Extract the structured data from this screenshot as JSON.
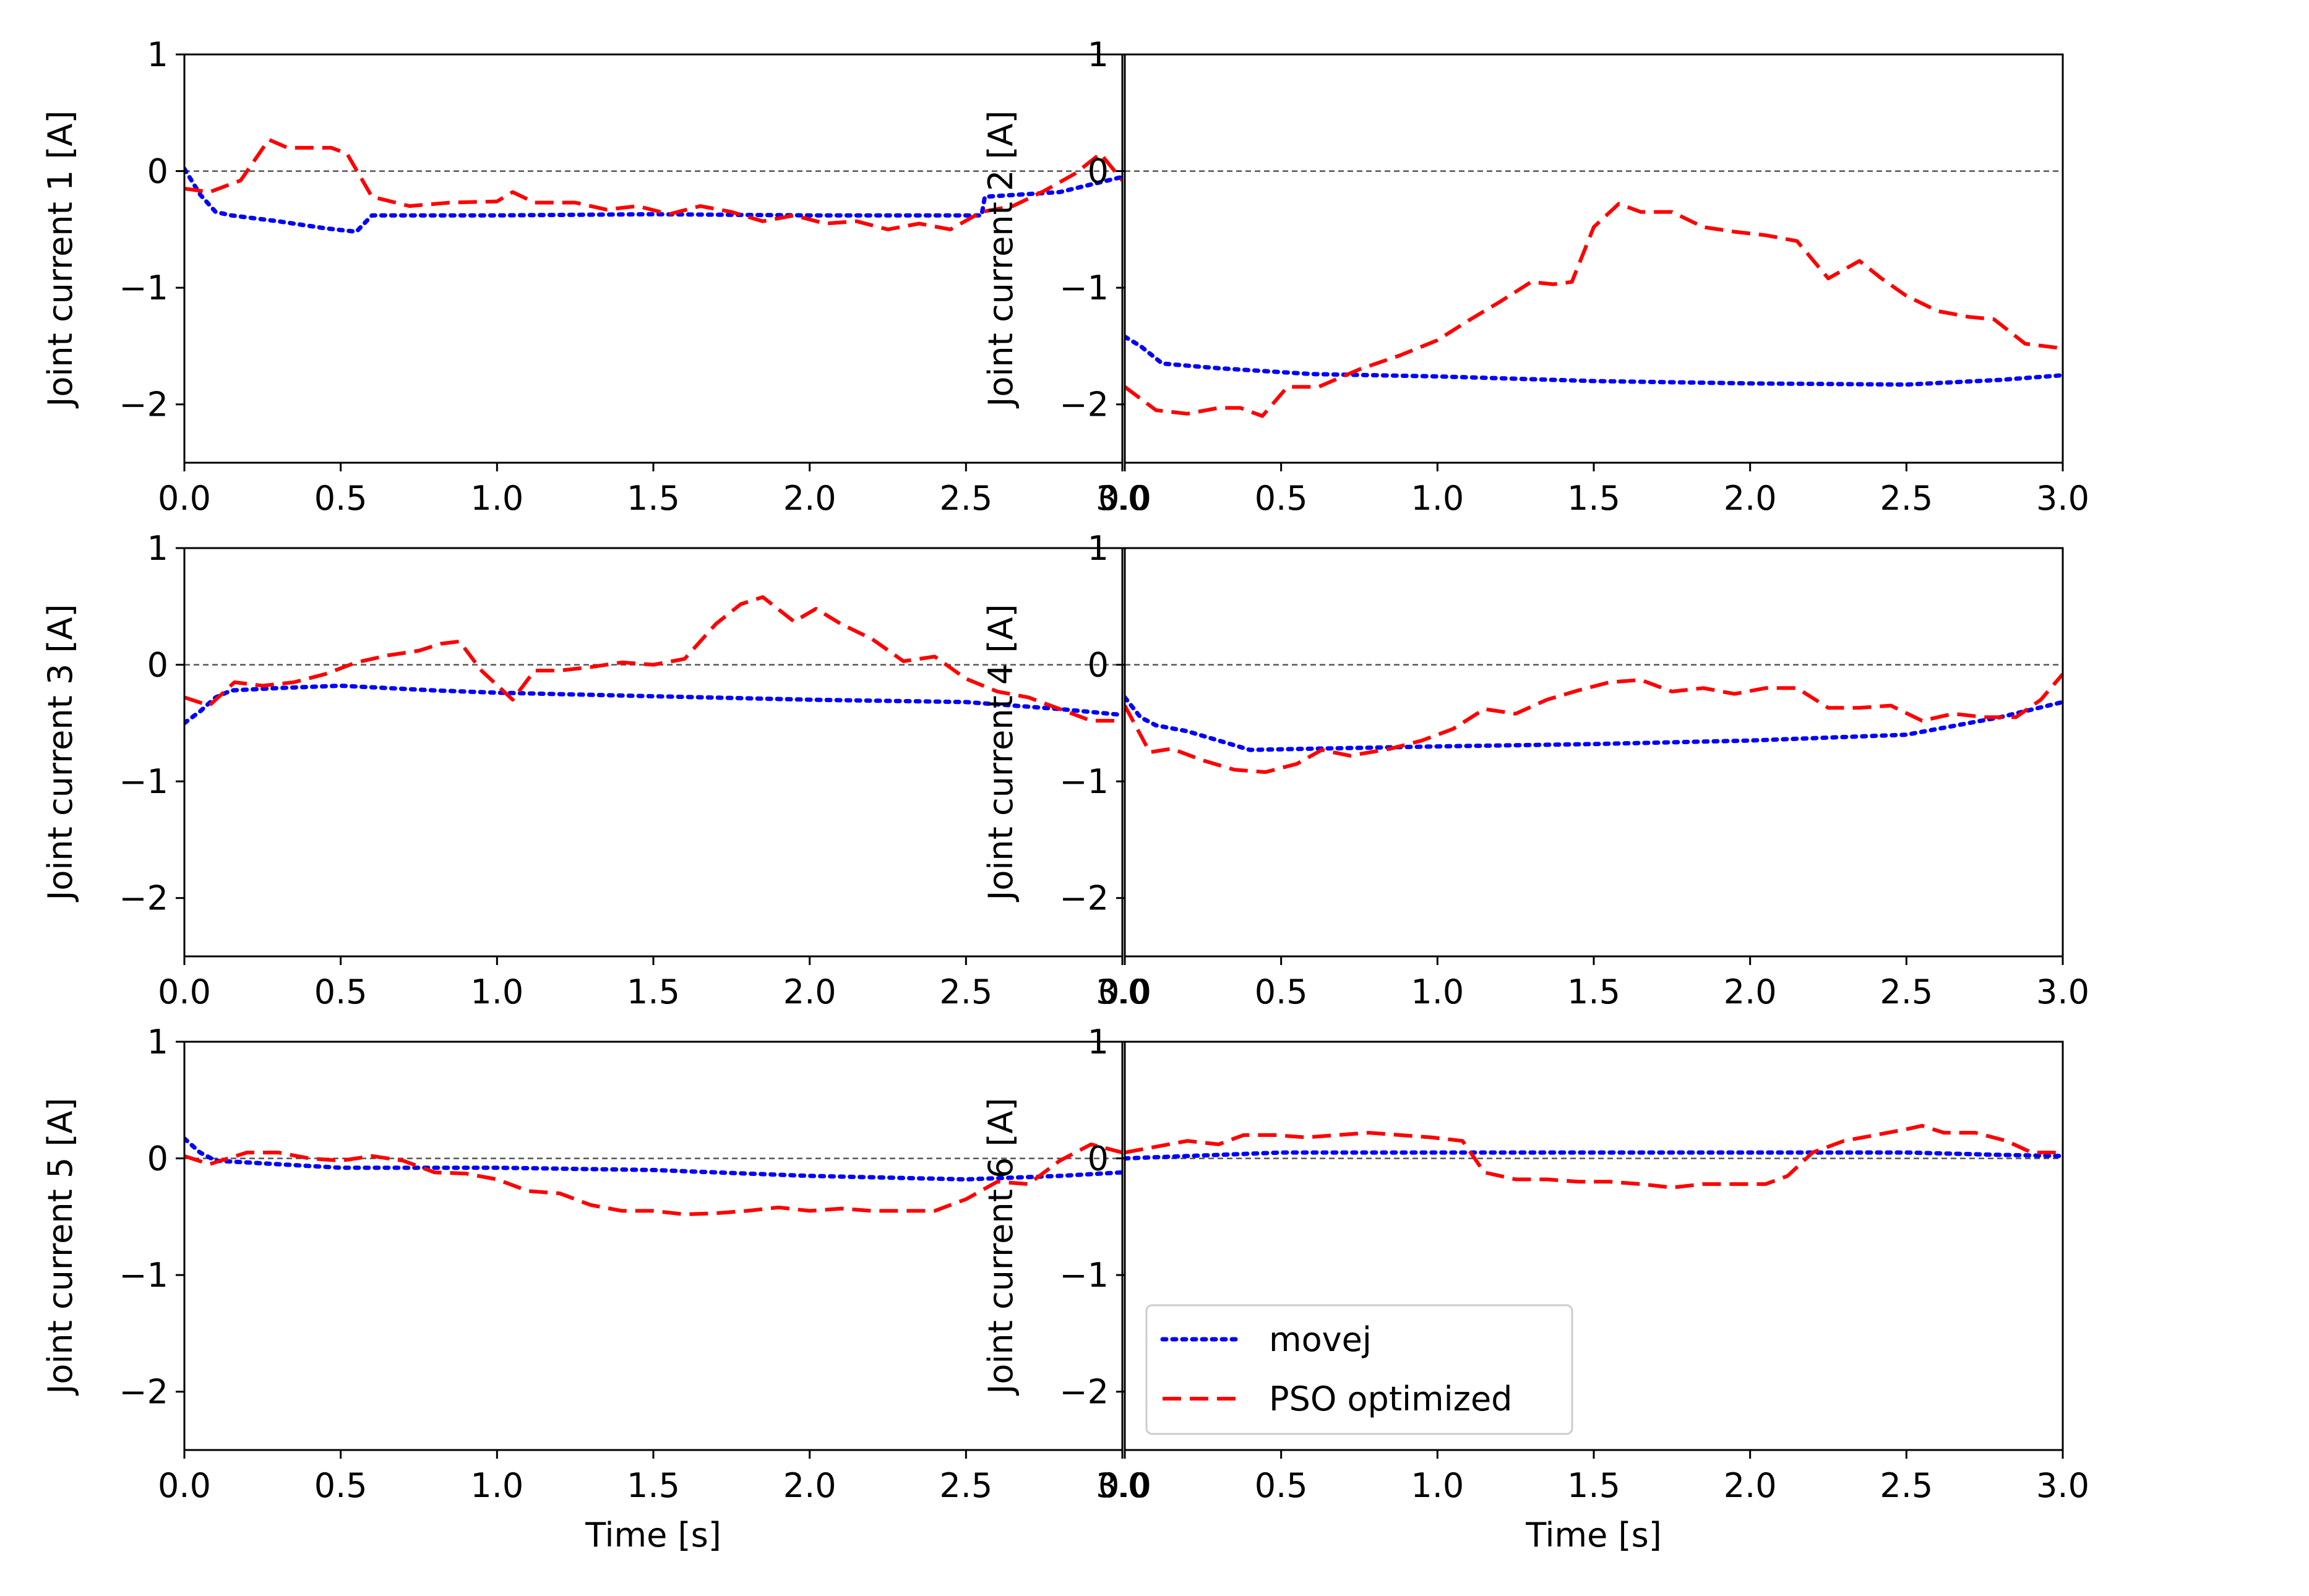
{
  "colors": {
    "movej": "#0000ff",
    "pso": "#ff0000",
    "zero_line": "#555555",
    "axes": "#000000",
    "legend_border": "#cccccc"
  },
  "legend": {
    "placement": "lower-left (bottom-right panel)",
    "entries": [
      {
        "label": "movej",
        "style": "dotted",
        "color": "#0000ff"
      },
      {
        "label": "PSO optimized",
        "style": "dashed",
        "color": "#ff0000"
      }
    ]
  },
  "chart_data": [
    {
      "type": "line",
      "ylabel": "Joint current 1 [A]",
      "xlabel": "",
      "xlim": [
        0,
        3
      ],
      "ylim": [
        -2.5,
        1
      ],
      "xticks": [
        "0.0",
        "0.5",
        "1.0",
        "1.5",
        "2.0",
        "2.5",
        "3.0"
      ],
      "yticks": [
        "1",
        "0",
        "−1",
        "−2"
      ],
      "ytick_values": [
        1,
        0,
        -1,
        -2
      ],
      "zero_line": true,
      "series": [
        {
          "name": "movej",
          "style": "dotted",
          "color": "#0000ff",
          "x": [
            0,
            0.05,
            0.1,
            0.15,
            0.3,
            0.45,
            0.55,
            0.6,
            0.7,
            1.0,
            1.5,
            2.0,
            2.55,
            2.56,
            2.8,
            3.0
          ],
          "y": [
            0.02,
            -0.2,
            -0.35,
            -0.38,
            -0.43,
            -0.49,
            -0.52,
            -0.38,
            -0.38,
            -0.38,
            -0.37,
            -0.38,
            -0.38,
            -0.22,
            -0.18,
            -0.05
          ]
        },
        {
          "name": "PSO optimized",
          "style": "dashed",
          "color": "#ff0000",
          "x": [
            0,
            0.08,
            0.18,
            0.27,
            0.33,
            0.4,
            0.47,
            0.52,
            0.6,
            0.72,
            0.85,
            1.0,
            1.05,
            1.12,
            1.25,
            1.35,
            1.45,
            1.55,
            1.65,
            1.75,
            1.85,
            1.95,
            2.05,
            2.15,
            2.25,
            2.35,
            2.45,
            2.55,
            2.65,
            2.75,
            2.85,
            2.93,
            3.0
          ],
          "y": [
            -0.15,
            -0.18,
            -0.08,
            0.27,
            0.2,
            0.2,
            0.2,
            0.15,
            -0.22,
            -0.3,
            -0.27,
            -0.26,
            -0.18,
            -0.27,
            -0.27,
            -0.33,
            -0.3,
            -0.37,
            -0.3,
            -0.35,
            -0.43,
            -0.38,
            -0.45,
            -0.43,
            -0.5,
            -0.45,
            -0.5,
            -0.35,
            -0.3,
            -0.17,
            -0.02,
            0.15,
            -0.08
          ]
        }
      ]
    },
    {
      "type": "line",
      "ylabel": "Joint current 2 [A]",
      "xlabel": "",
      "xlim": [
        0,
        3
      ],
      "ylim": [
        -2.5,
        1
      ],
      "xticks": [
        "0.0",
        "0.5",
        "1.0",
        "1.5",
        "2.0",
        "2.5",
        "3.0"
      ],
      "yticks": [
        "1",
        "0",
        "−1",
        "−2"
      ],
      "ytick_values": [
        1,
        0,
        -1,
        -2
      ],
      "zero_line": true,
      "series": [
        {
          "name": "movej",
          "style": "dotted",
          "color": "#0000ff",
          "x": [
            0,
            0.05,
            0.12,
            0.3,
            0.6,
            1.0,
            1.5,
            2.0,
            2.5,
            2.8,
            3.0
          ],
          "y": [
            -1.42,
            -1.5,
            -1.65,
            -1.69,
            -1.74,
            -1.76,
            -1.8,
            -1.82,
            -1.83,
            -1.79,
            -1.75
          ]
        },
        {
          "name": "PSO optimized",
          "style": "dashed",
          "color": "#ff0000",
          "x": [
            0,
            0.1,
            0.2,
            0.3,
            0.37,
            0.44,
            0.52,
            0.62,
            0.75,
            0.88,
            1.0,
            1.1,
            1.2,
            1.3,
            1.37,
            1.43,
            1.5,
            1.58,
            1.65,
            1.75,
            1.85,
            1.95,
            2.05,
            2.15,
            2.25,
            2.35,
            2.42,
            2.5,
            2.6,
            2.7,
            2.78,
            2.88,
            3.0
          ],
          "y": [
            -1.85,
            -2.05,
            -2.08,
            -2.03,
            -2.03,
            -2.1,
            -1.85,
            -1.85,
            -1.7,
            -1.58,
            -1.45,
            -1.28,
            -1.12,
            -0.95,
            -0.97,
            -0.95,
            -0.48,
            -0.28,
            -0.35,
            -0.35,
            -0.48,
            -0.52,
            -0.55,
            -0.6,
            -0.92,
            -0.77,
            -0.92,
            -1.07,
            -1.2,
            -1.25,
            -1.27,
            -1.48,
            -1.52
          ]
        }
      ]
    },
    {
      "type": "line",
      "ylabel": "Joint current 3 [A]",
      "xlabel": "",
      "xlim": [
        0,
        3
      ],
      "ylim": [
        -2.5,
        1
      ],
      "xticks": [
        "0.0",
        "0.5",
        "1.0",
        "1.5",
        "2.0",
        "2.5",
        "3.0"
      ],
      "yticks": [
        "1",
        "0",
        "−1",
        "−2"
      ],
      "ytick_values": [
        1,
        0,
        -1,
        -2
      ],
      "zero_line": true,
      "series": [
        {
          "name": "movej",
          "style": "dotted",
          "color": "#0000ff",
          "x": [
            0,
            0.05,
            0.1,
            0.15,
            0.3,
            0.5,
            0.8,
            1.0,
            1.5,
            2.0,
            2.5,
            2.8,
            3.0
          ],
          "y": [
            -0.5,
            -0.4,
            -0.28,
            -0.22,
            -0.2,
            -0.18,
            -0.22,
            -0.24,
            -0.27,
            -0.3,
            -0.32,
            -0.38,
            -0.43
          ]
        },
        {
          "name": "PSO optimized",
          "style": "dashed",
          "color": "#ff0000",
          "x": [
            0,
            0.08,
            0.16,
            0.25,
            0.35,
            0.45,
            0.55,
            0.65,
            0.75,
            0.82,
            0.88,
            0.95,
            1.05,
            1.12,
            1.2,
            1.3,
            1.4,
            1.5,
            1.6,
            1.7,
            1.78,
            1.85,
            1.95,
            2.02,
            2.1,
            2.2,
            2.3,
            2.4,
            2.5,
            2.6,
            2.7,
            2.8,
            2.9,
            3.0
          ],
          "y": [
            -0.28,
            -0.35,
            -0.15,
            -0.18,
            -0.15,
            -0.08,
            0.02,
            0.08,
            0.12,
            0.18,
            0.2,
            -0.05,
            -0.3,
            -0.05,
            -0.05,
            -0.02,
            0.02,
            0.0,
            0.05,
            0.35,
            0.52,
            0.58,
            0.37,
            0.48,
            0.35,
            0.22,
            0.03,
            0.07,
            -0.12,
            -0.23,
            -0.28,
            -0.38,
            -0.48,
            -0.48
          ]
        }
      ]
    },
    {
      "type": "line",
      "ylabel": "Joint current 4 [A]",
      "xlabel": "",
      "xlim": [
        0,
        3
      ],
      "ylim": [
        -2.5,
        1
      ],
      "xticks": [
        "0.0",
        "0.5",
        "1.0",
        "1.5",
        "2.0",
        "2.5",
        "3.0"
      ],
      "yticks": [
        "1",
        "0",
        "−1",
        "−2"
      ],
      "ytick_values": [
        1,
        0,
        -1,
        -2
      ],
      "zero_line": true,
      "series": [
        {
          "name": "movej",
          "style": "dotted",
          "color": "#0000ff",
          "x": [
            0,
            0.05,
            0.1,
            0.2,
            0.3,
            0.4,
            0.6,
            0.8,
            1.0,
            1.5,
            2.0,
            2.5,
            2.8,
            3.0
          ],
          "y": [
            -0.28,
            -0.45,
            -0.52,
            -0.57,
            -0.65,
            -0.73,
            -0.72,
            -0.71,
            -0.7,
            -0.68,
            -0.65,
            -0.6,
            -0.45,
            -0.32
          ]
        },
        {
          "name": "PSO optimized",
          "style": "dashed",
          "color": "#ff0000",
          "x": [
            0,
            0.08,
            0.15,
            0.25,
            0.35,
            0.45,
            0.55,
            0.63,
            0.72,
            0.85,
            0.95,
            1.05,
            1.15,
            1.25,
            1.35,
            1.45,
            1.55,
            1.65,
            1.75,
            1.85,
            1.95,
            2.05,
            2.15,
            2.25,
            2.35,
            2.45,
            2.55,
            2.65,
            2.75,
            2.85,
            2.93,
            3.0
          ],
          "y": [
            -0.35,
            -0.75,
            -0.72,
            -0.82,
            -0.9,
            -0.92,
            -0.85,
            -0.73,
            -0.78,
            -0.72,
            -0.65,
            -0.55,
            -0.38,
            -0.42,
            -0.3,
            -0.22,
            -0.15,
            -0.13,
            -0.23,
            -0.2,
            -0.25,
            -0.2,
            -0.2,
            -0.37,
            -0.37,
            -0.35,
            -0.48,
            -0.42,
            -0.45,
            -0.45,
            -0.3,
            -0.08
          ]
        }
      ]
    },
    {
      "type": "line",
      "ylabel": "Joint current 5 [A]",
      "xlabel": "Time [s]",
      "xlim": [
        0,
        3
      ],
      "ylim": [
        -2.5,
        1
      ],
      "xticks": [
        "0.0",
        "0.5",
        "1.0",
        "1.5",
        "2.0",
        "2.5",
        "3.0"
      ],
      "yticks": [
        "1",
        "0",
        "−1",
        "−2"
      ],
      "ytick_values": [
        1,
        0,
        -1,
        -2
      ],
      "zero_line": true,
      "series": [
        {
          "name": "movej",
          "style": "dotted",
          "color": "#0000ff",
          "x": [
            0,
            0.05,
            0.1,
            0.3,
            0.5,
            1.0,
            1.5,
            2.0,
            2.5,
            2.8,
            3.0
          ],
          "y": [
            0.17,
            0.05,
            -0.02,
            -0.05,
            -0.08,
            -0.08,
            -0.1,
            -0.15,
            -0.18,
            -0.15,
            -0.12
          ]
        },
        {
          "name": "PSO optimized",
          "style": "dashed",
          "color": "#ff0000",
          "x": [
            0,
            0.08,
            0.2,
            0.3,
            0.4,
            0.5,
            0.6,
            0.7,
            0.8,
            0.9,
            1.0,
            1.1,
            1.2,
            1.3,
            1.4,
            1.5,
            1.6,
            1.7,
            1.8,
            1.9,
            2.0,
            2.1,
            2.2,
            2.3,
            2.4,
            2.5,
            2.6,
            2.7,
            2.8,
            2.9,
            3.0
          ],
          "y": [
            0.02,
            -0.05,
            0.05,
            0.05,
            0.0,
            -0.02,
            0.02,
            -0.02,
            -0.12,
            -0.13,
            -0.18,
            -0.28,
            -0.3,
            -0.4,
            -0.45,
            -0.45,
            -0.48,
            -0.47,
            -0.45,
            -0.42,
            -0.45,
            -0.43,
            -0.45,
            -0.45,
            -0.45,
            -0.35,
            -0.2,
            -0.22,
            -0.02,
            0.12,
            0.05
          ]
        }
      ]
    },
    {
      "type": "line",
      "ylabel": "Joint current 6 [A]",
      "xlabel": "Time [s]",
      "xlim": [
        0,
        3
      ],
      "ylim": [
        -2.5,
        1
      ],
      "xticks": [
        "0.0",
        "0.5",
        "1.0",
        "1.5",
        "2.0",
        "2.5",
        "3.0"
      ],
      "yticks": [
        "1",
        "0",
        "−1",
        "−2"
      ],
      "ytick_values": [
        1,
        0,
        -1,
        -2
      ],
      "zero_line": true,
      "series": [
        {
          "name": "movej",
          "style": "dotted",
          "color": "#0000ff",
          "x": [
            0,
            0.3,
            0.5,
            1.0,
            1.5,
            2.0,
            2.5,
            2.8,
            3.0
          ],
          "y": [
            0.0,
            0.03,
            0.05,
            0.05,
            0.05,
            0.05,
            0.05,
            0.03,
            0.02
          ]
        },
        {
          "name": "PSO optimized",
          "style": "dashed",
          "color": "#ff0000",
          "x": [
            0,
            0.1,
            0.2,
            0.3,
            0.38,
            0.48,
            0.58,
            0.68,
            0.78,
            0.88,
            0.98,
            1.08,
            1.15,
            1.25,
            1.35,
            1.45,
            1.55,
            1.65,
            1.75,
            1.85,
            1.95,
            2.05,
            2.12,
            2.2,
            2.3,
            2.4,
            2.5,
            2.55,
            2.62,
            2.72,
            2.82,
            2.9,
            3.0
          ],
          "y": [
            0.05,
            0.1,
            0.15,
            0.12,
            0.2,
            0.2,
            0.18,
            0.2,
            0.22,
            0.2,
            0.18,
            0.15,
            -0.12,
            -0.18,
            -0.18,
            -0.2,
            -0.2,
            -0.22,
            -0.25,
            -0.22,
            -0.22,
            -0.22,
            -0.15,
            0.05,
            0.15,
            0.2,
            0.25,
            0.28,
            0.22,
            0.22,
            0.15,
            0.05,
            0.05
          ]
        }
      ]
    }
  ]
}
